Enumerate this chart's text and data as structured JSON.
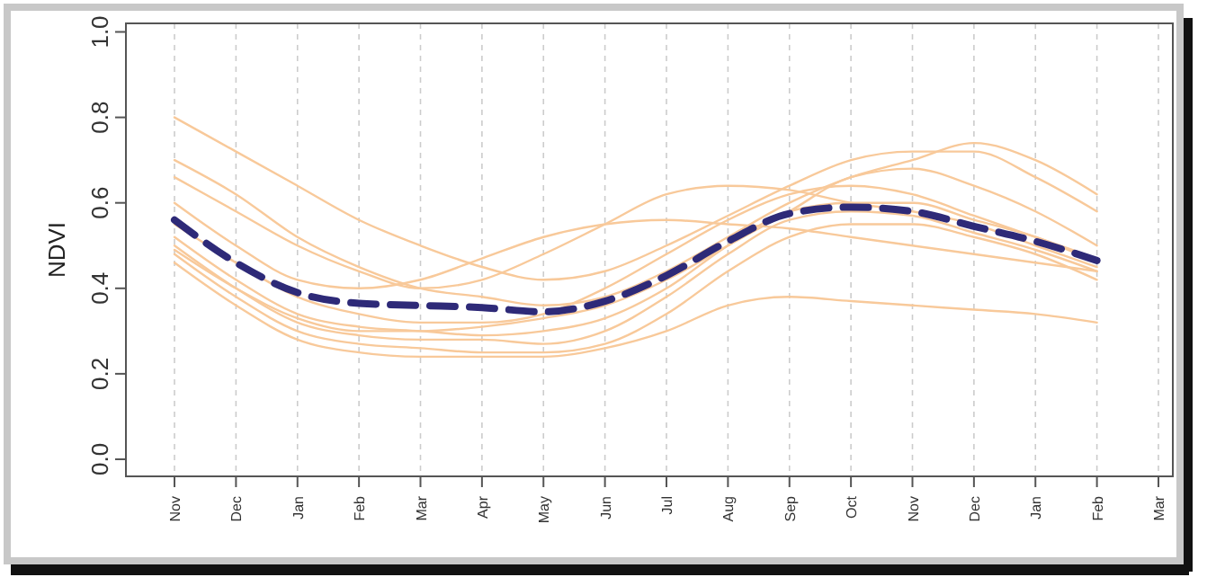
{
  "chart_data": {
    "type": "line",
    "ylabel": "NDVI",
    "categories": [
      "Nov",
      "Dec",
      "Jan",
      "Feb",
      "Mar",
      "Apr",
      "May",
      "Jun",
      "Jul",
      "Aug",
      "Sep",
      "Oct",
      "Nov",
      "Dec",
      "Jan",
      "Feb",
      "Mar"
    ],
    "ylim": [
      -0.04,
      1.02
    ],
    "yticks": [
      {
        "value": 0,
        "label": "0.0"
      },
      0.2,
      0.4,
      0.6,
      0.8,
      {
        "value": 1,
        "label": "1.0"
      }
    ],
    "grid": "x",
    "series": [
      {
        "color": "#f8c99a",
        "values": [
          0.8,
          0.72,
          0.64,
          0.56,
          0.5,
          0.45,
          0.42,
          0.44,
          0.5,
          0.57,
          0.64,
          0.7,
          0.72,
          0.72,
          0.66,
          0.58,
          null
        ]
      },
      {
        "color": "#f8c99a",
        "values": [
          0.66,
          0.58,
          0.5,
          0.44,
          0.4,
          0.42,
          0.48,
          0.55,
          0.62,
          0.64,
          0.63,
          0.6,
          0.58,
          0.55,
          0.5,
          0.45,
          null
        ]
      },
      {
        "color": "#f8c99a",
        "values": [
          0.7,
          0.62,
          0.52,
          0.45,
          0.4,
          0.38,
          0.36,
          0.38,
          0.44,
          0.52,
          0.6,
          0.66,
          0.7,
          0.74,
          0.7,
          0.62,
          null
        ]
      },
      {
        "color": "#f8c99a",
        "values": [
          0.5,
          0.4,
          0.32,
          0.29,
          0.28,
          0.28,
          0.27,
          0.3,
          0.38,
          0.48,
          0.56,
          0.58,
          0.57,
          0.53,
          0.49,
          0.44,
          null
        ]
      },
      {
        "color": "#f8c99a",
        "values": [
          0.48,
          0.38,
          0.3,
          0.27,
          0.26,
          0.25,
          0.25,
          0.27,
          0.34,
          0.44,
          0.52,
          0.55,
          0.55,
          0.52,
          0.48,
          0.42,
          null
        ]
      },
      {
        "color": "#f8c99a",
        "values": [
          0.52,
          0.42,
          0.34,
          0.31,
          0.3,
          0.29,
          0.3,
          0.33,
          0.4,
          0.5,
          0.58,
          0.6,
          0.6,
          0.56,
          0.52,
          0.46,
          null
        ]
      },
      {
        "color": "#f8c99a",
        "values": [
          0.46,
          0.36,
          0.28,
          0.25,
          0.24,
          0.24,
          0.24,
          0.26,
          0.3,
          0.36,
          0.38,
          0.37,
          0.36,
          0.35,
          0.34,
          0.32,
          null
        ]
      },
      {
        "color": "#f8c99a",
        "values": [
          0.55,
          0.46,
          0.38,
          0.34,
          0.32,
          0.32,
          0.34,
          0.4,
          0.48,
          0.56,
          0.62,
          0.64,
          0.62,
          0.57,
          0.52,
          0.47,
          null
        ]
      },
      {
        "color": "#f8c99a",
        "values": [
          0.49,
          0.4,
          0.33,
          0.3,
          0.3,
          0.31,
          0.33,
          0.36,
          0.42,
          0.5,
          0.58,
          0.66,
          0.68,
          0.64,
          0.58,
          0.5,
          null
        ]
      },
      {
        "color": "#f8c99a",
        "values": [
          0.6,
          0.5,
          0.42,
          0.4,
          0.42,
          0.47,
          0.52,
          0.55,
          0.56,
          0.55,
          0.54,
          0.52,
          0.5,
          0.48,
          0.46,
          0.44,
          null
        ]
      },
      {
        "color": "#2e2a78",
        "line_style": "dashed",
        "values": [
          0.56,
          0.46,
          0.39,
          0.365,
          0.36,
          0.355,
          0.345,
          0.37,
          0.43,
          0.51,
          0.575,
          0.59,
          0.58,
          0.545,
          0.51,
          0.465,
          null
        ]
      }
    ]
  }
}
